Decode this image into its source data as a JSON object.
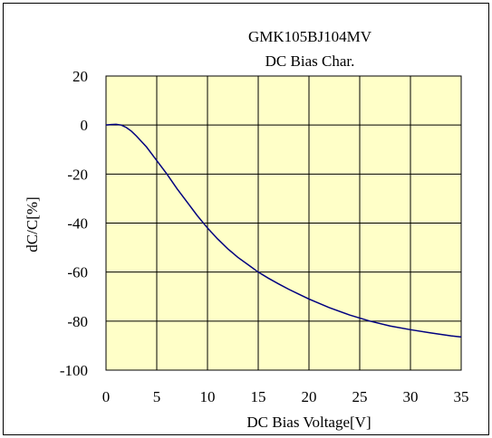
{
  "chart_data": {
    "type": "line",
    "title_line1": "GMK105BJ104MV",
    "title_line2": "DC Bias Char.",
    "xlabel": "DC Bias Voltage[V]",
    "ylabel": "dC/C[%]",
    "xlim": [
      0,
      35
    ],
    "ylim": [
      -100,
      20
    ],
    "x_ticks": [
      0,
      5,
      10,
      15,
      20,
      25,
      30,
      35
    ],
    "y_ticks": [
      20,
      0,
      -20,
      -40,
      -60,
      -80,
      -100
    ],
    "grid": true,
    "plot_background": "#ffffc8",
    "line_color": "#000080",
    "series": [
      {
        "x": [
          0,
          0.5,
          1,
          1.5,
          2,
          2.5,
          3,
          4,
          5,
          6,
          7,
          8,
          9,
          10,
          11,
          12,
          13,
          14,
          15,
          16,
          17,
          18,
          19,
          20,
          22,
          24,
          26,
          28,
          30,
          32,
          34,
          35
        ],
        "values": [
          0,
          0.2,
          0.3,
          0,
          -1,
          -2.5,
          -4.5,
          -9,
          -14.5,
          -20,
          -26,
          -31.5,
          -37,
          -42,
          -46.5,
          -50.5,
          -54,
          -57,
          -60,
          -62.5,
          -64.8,
          -67,
          -69,
          -71,
          -74.5,
          -77.5,
          -80,
          -82,
          -83.5,
          -84.8,
          -86,
          -86.5
        ]
      }
    ]
  }
}
